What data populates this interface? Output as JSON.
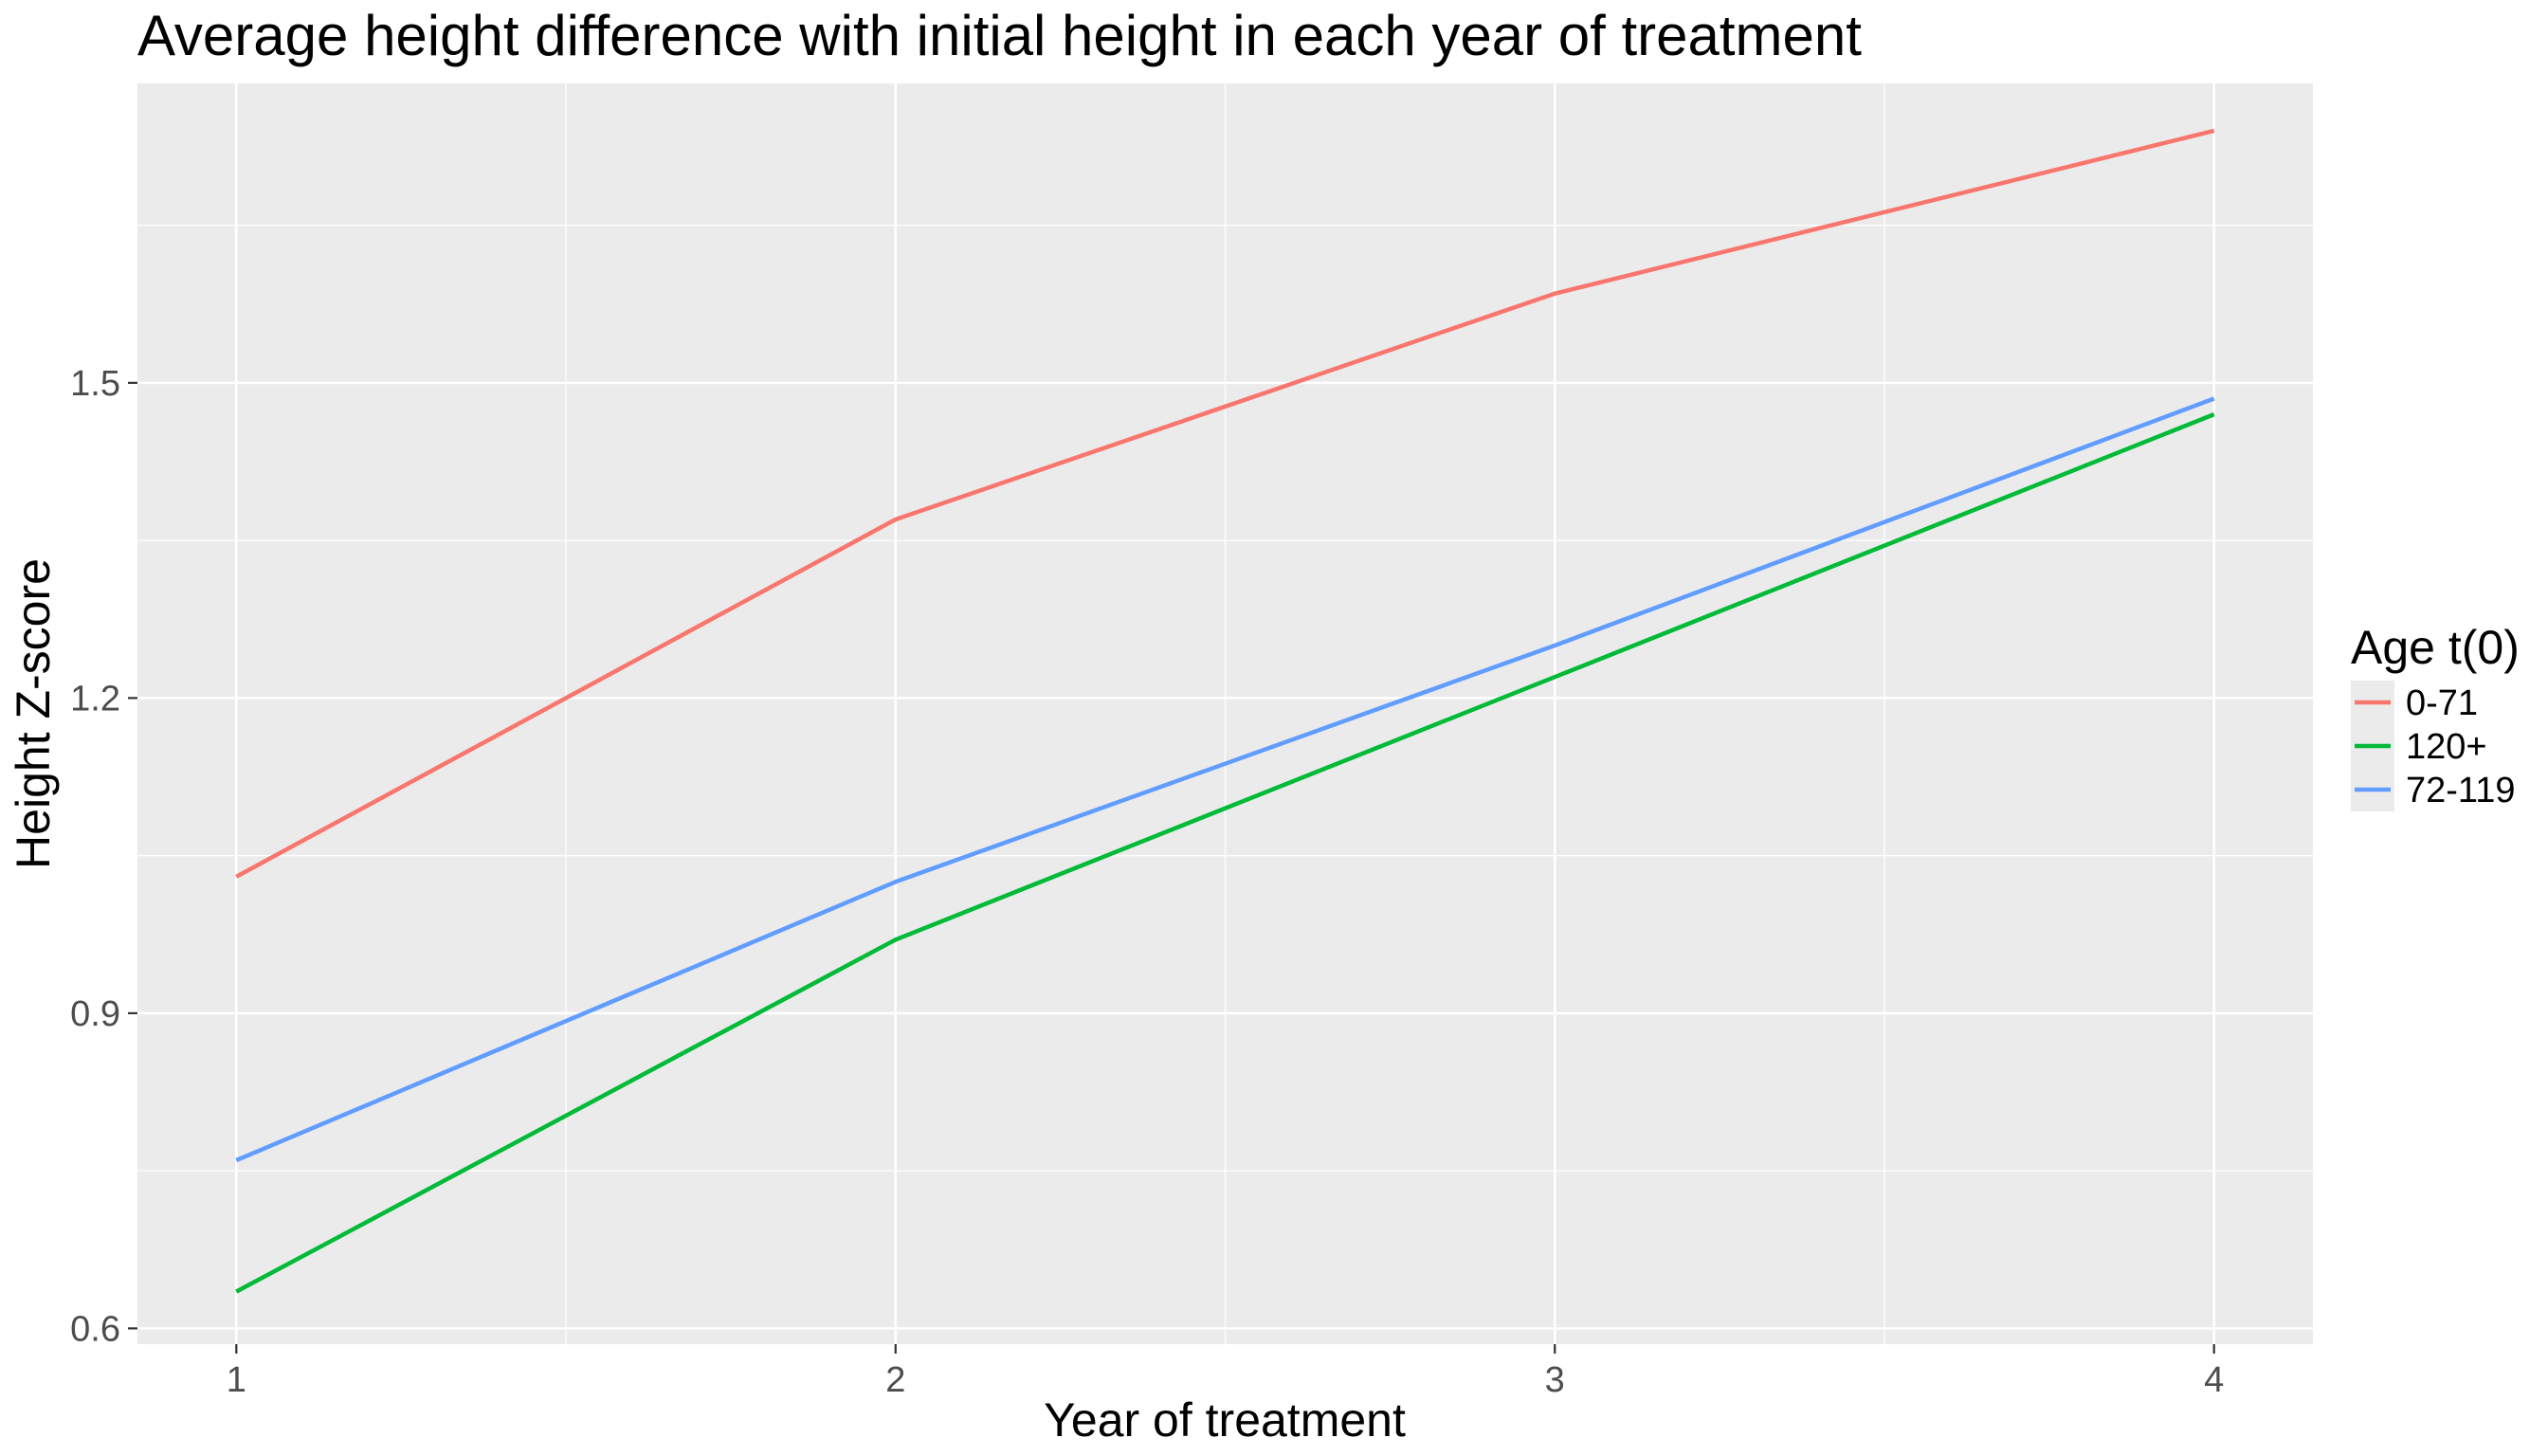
{
  "chart_data": {
    "type": "line",
    "title": "Average height difference with initial height in each year of treatment",
    "xlabel": "Year of treatment",
    "ylabel": "Height Z-score",
    "x": [
      1,
      2,
      3,
      4
    ],
    "x_ticks": [
      "1",
      "2",
      "3",
      "4"
    ],
    "y_ticks": [
      "0.6",
      "0.9",
      "1.2",
      "1.5"
    ],
    "y_tick_values": [
      0.6,
      0.9,
      1.2,
      1.5
    ],
    "xlim": [
      0.85,
      4.15
    ],
    "ylim": [
      0.585,
      1.785
    ],
    "grid": true,
    "legend": {
      "title": "Age t(0)",
      "placement": "right"
    },
    "series": [
      {
        "name": "0-71",
        "color": "#F8766D",
        "values": [
          1.03,
          1.37,
          1.585,
          1.74
        ]
      },
      {
        "name": "120+",
        "color": "#00BA38",
        "values": [
          0.635,
          0.97,
          1.22,
          1.47
        ]
      },
      {
        "name": "72-119",
        "color": "#619CFF",
        "values": [
          0.76,
          1.025,
          1.25,
          1.485
        ]
      }
    ],
    "colors": {
      "panel_background": "#EBEBEB",
      "grid_line": "#FFFFFF",
      "tick_text": "#4D4D4D",
      "tick_mark": "#333333"
    }
  }
}
